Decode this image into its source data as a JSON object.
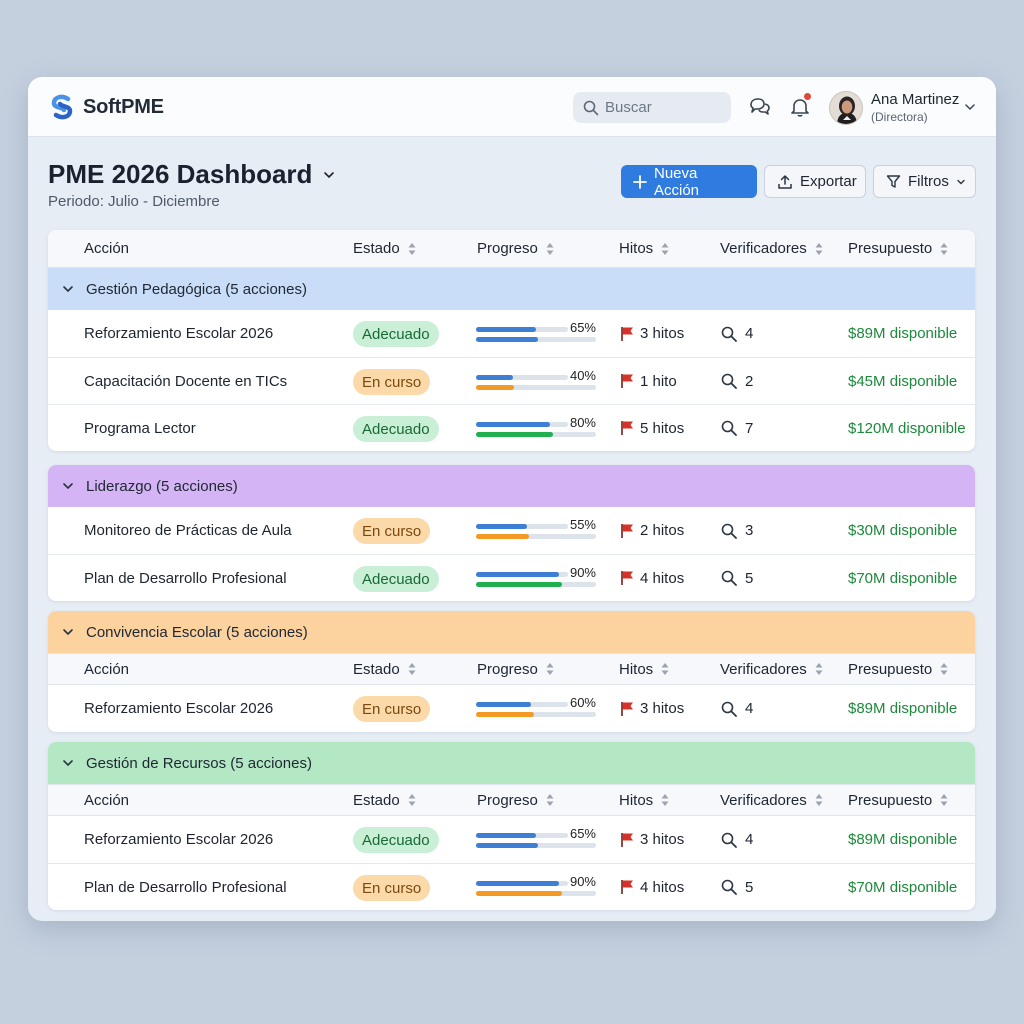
{
  "app": {
    "name": "SoftPME"
  },
  "search": {
    "placeholder": "Buscar"
  },
  "user": {
    "name": "Ana Martinez",
    "role": "(Directora)"
  },
  "page": {
    "title": "PME 2026 Dashboard",
    "period": "Periodo: Julio - Diciembre"
  },
  "toolbar": {
    "new_action": "Nueva Acción",
    "export": "Exportar",
    "filters": "Filtros"
  },
  "columns": [
    "Acción",
    "Estado",
    "Progreso",
    "Hitos",
    "Verificadores",
    "Presupuesto"
  ],
  "colors": {
    "accent": "#2f7be0",
    "status_ok_bg": "#c9efd6",
    "status_ok_fg": "#186a35",
    "status_progress_bg": "#fbd9a8",
    "status_progress_fg": "#7a4a10",
    "budget_green": "#1b8a3b"
  },
  "groups": [
    {
      "label": "Gestión Pedagógica (5 acciones)",
      "color": "#c9ddf8",
      "rows": [
        {
          "action": "Reforzamiento Escolar 2026",
          "status": "Adecuado",
          "status_kind": "ok",
          "progress": 65,
          "progress_label": "65%",
          "milestones": "3 hitos",
          "verifiers": "4",
          "budget": "$89M disponible"
        },
        {
          "action": "Capacitación Docente en TICs",
          "status": "En curso",
          "status_kind": "progress",
          "progress": 40,
          "progress_label": "40%",
          "milestones": "1 hito",
          "verifiers": "2",
          "budget": "$45M disponible"
        },
        {
          "action": "Programa Lector",
          "status": "Adecuado",
          "status_kind": "ok",
          "progress": 80,
          "progress_label": "80%",
          "milestones": "5 hitos",
          "verifiers": "7",
          "budget": "$120M disponible"
        }
      ]
    },
    {
      "label": "Liderazgo (5 acciones)",
      "color": "#d4b4f4",
      "rows": [
        {
          "action": "Monitoreo de Prácticas de Aula",
          "status": "En curso",
          "status_kind": "progress",
          "progress": 55,
          "progress_label": "55%",
          "milestones": "2 hitos",
          "verifiers": "3",
          "budget": "$30M disponible"
        },
        {
          "action": "Plan de Desarrollo Profesional",
          "status": "Adecuado",
          "status_kind": "ok",
          "progress": 90,
          "progress_label": "90%",
          "milestones": "4 hitos",
          "verifiers": "5",
          "budget": "$70M disponible"
        }
      ]
    },
    {
      "label": "Convivencia Escolar (5 acciones)",
      "color": "#fcd29e",
      "rows": [
        {
          "action": "Reforzamiento Escolar 2026",
          "status": "En curso",
          "status_kind": "progress",
          "progress": 60,
          "progress_label": "60%",
          "milestones": "3 hitos",
          "verifiers": "4",
          "budget": "$89M disponible"
        }
      ]
    },
    {
      "label": "Gestión de Recursos (5 acciones)",
      "color": "#b4e8c5",
      "rows": [
        {
          "action": "Reforzamiento Escolar 2026",
          "status": "Adecuado",
          "status_kind": "ok",
          "progress": 65,
          "progress_label": "65%",
          "milestones": "3 hitos",
          "verifiers": "4",
          "budget": "$89M disponible"
        },
        {
          "action": "Plan de Desarrollo Profesional",
          "status": "En curso",
          "status_kind": "progress",
          "progress": 90,
          "progress_label": "90%",
          "milestones": "4 hitos",
          "verifiers": "5",
          "budget": "$70M disponible"
        }
      ]
    }
  ]
}
